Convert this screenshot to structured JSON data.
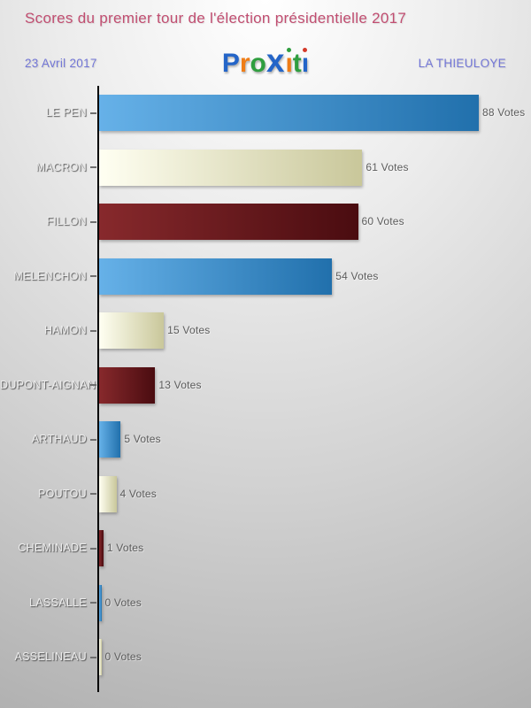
{
  "header": {
    "title": "Scores du premier tour de l'élection présidentielle 2017",
    "date": "23 Avril 2017",
    "location": "LA THIEULOYE"
  },
  "logo": {
    "name": "PROXiti",
    "letters": [
      {
        "ch": "P",
        "color": "#2465c8"
      },
      {
        "ch": "r",
        "color": "#ef7d17"
      },
      {
        "ch": "o",
        "color": "#2f9e3f"
      },
      {
        "ch": "x",
        "color": "#2465c8",
        "size": "xbig"
      },
      {
        "ch": "i",
        "color": "#ef7d17",
        "dot": "#2f9e3f"
      },
      {
        "ch": "t",
        "color": "#2f9e3f"
      },
      {
        "ch": "i",
        "color": "#2465c8",
        "dot": "#d43a2a"
      }
    ]
  },
  "chart_data": {
    "type": "bar",
    "orientation": "horizontal",
    "title": "Scores du premier tour de l'élection présidentielle 2017",
    "unit": "Votes",
    "categories": [
      "LE PEN",
      "MACRON",
      "FILLON",
      "MELENCHON",
      "HAMON",
      "DUPONT-AIGNAN",
      "ARTHAUD",
      "POUTOU",
      "CHEMINADE",
      "LASSALLE",
      "ASSELINEAU"
    ],
    "values": [
      88,
      61,
      60,
      54,
      15,
      13,
      5,
      4,
      1,
      0,
      0
    ],
    "value_labels": [
      "88 Votes",
      "61 Votes",
      "60 Votes",
      "54 Votes",
      "15 Votes",
      "13 Votes",
      "5 Votes",
      "4 Votes",
      "1 Votes",
      "0 Votes",
      "0 Votes"
    ],
    "xlim": [
      0,
      90
    ],
    "grid": false,
    "legend": false,
    "bar_style_cycle": [
      "blue",
      "cream",
      "darkred"
    ],
    "palette": {
      "blue": [
        "#66b1e8",
        "#2170ac"
      ],
      "cream": [
        "#fffff2",
        "#c9c79a"
      ],
      "darkred": [
        "#87292c",
        "#4a0c10"
      ]
    },
    "axis_color": "#000000",
    "category_label_color": "#ececec",
    "value_label_color": "#5d5d5d"
  },
  "colors": {
    "title": "#c14e71",
    "subtitle": "#7276d6",
    "background_top": "#fdfdfd",
    "background_bottom": "#b0b0b0"
  }
}
